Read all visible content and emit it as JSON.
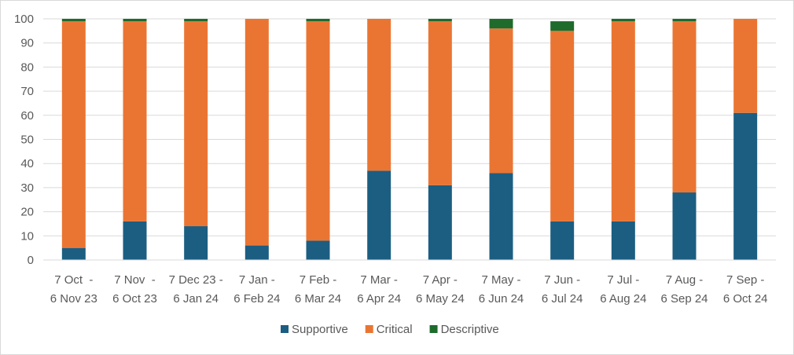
{
  "chart_data": {
    "type": "bar",
    "stacked": true,
    "categories": [
      [
        "7 Oct  -",
        "6 Nov 23"
      ],
      [
        "7 Nov  -",
        "6 Oct 23"
      ],
      [
        "7 Dec 23 -",
        "6 Jan 24"
      ],
      [
        "7 Jan -",
        "6 Feb 24"
      ],
      [
        "7 Feb -",
        "6 Mar 24"
      ],
      [
        "7 Mar -",
        "6 Apr 24"
      ],
      [
        "7 Apr -",
        "6 May 24"
      ],
      [
        "7 May -",
        "6 Jun 24"
      ],
      [
        "7 Jun -",
        "6 Jul 24"
      ],
      [
        "7 Jul -",
        "6 Aug 24"
      ],
      [
        "7 Aug -",
        "6 Sep 24"
      ],
      [
        "7 Sep -",
        "6 Oct 24"
      ]
    ],
    "series": [
      {
        "name": "Supportive",
        "color": "#1b5e82",
        "values": [
          5,
          16,
          14,
          6,
          8,
          37,
          31,
          36,
          16,
          16,
          28,
          61
        ]
      },
      {
        "name": "Critical",
        "color": "#ea7533",
        "values": [
          94,
          83,
          85,
          94,
          91,
          63,
          68,
          60,
          79,
          83,
          71,
          39
        ]
      },
      {
        "name": "Descriptive",
        "color": "#1e6b2c",
        "values": [
          1,
          1,
          1,
          0,
          1,
          0,
          1,
          4,
          4,
          1,
          1,
          0
        ]
      }
    ],
    "ylim": [
      0,
      100
    ],
    "yticks": [
      0,
      10,
      20,
      30,
      40,
      50,
      60,
      70,
      80,
      90,
      100
    ],
    "grid": true,
    "legend_position": "bottom"
  }
}
